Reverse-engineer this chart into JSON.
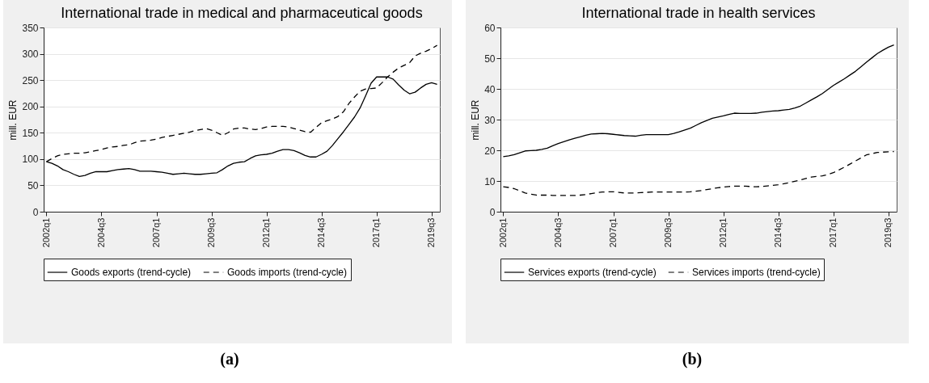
{
  "chart_data": [
    {
      "type": "line",
      "title": "International trade in medical and pharmaceutical goods",
      "ylabel": "mill. EUR",
      "annotations": [
        "(a)"
      ],
      "ylim": [
        0,
        350
      ],
      "yticks": [
        0,
        50,
        100,
        150,
        200,
        250,
        300,
        350
      ],
      "categories": [
        "2002q1",
        null,
        null,
        null,
        null,
        null,
        null,
        null,
        null,
        null,
        "2004q3",
        null,
        null,
        null,
        null,
        null,
        null,
        null,
        null,
        null,
        "2007q1",
        null,
        null,
        null,
        null,
        null,
        null,
        null,
        null,
        null,
        "2009q3",
        null,
        null,
        null,
        null,
        null,
        null,
        null,
        null,
        null,
        "2012q1",
        null,
        null,
        null,
        null,
        null,
        null,
        null,
        null,
        null,
        "2014q3",
        null,
        null,
        null,
        null,
        null,
        null,
        null,
        null,
        null,
        "2017q1",
        null,
        null,
        null,
        null,
        null,
        null,
        null,
        null,
        null,
        "2019q3",
        null
      ],
      "grid": "y",
      "legend": "bottom",
      "series": [
        {
          "name": "Goods exports (trend-cycle)",
          "color": "#000000",
          "line_style": "solid",
          "values": [
            95,
            92,
            87,
            80,
            76,
            71,
            67,
            69,
            73,
            76,
            76,
            76,
            78,
            80,
            81,
            82,
            80,
            77,
            77,
            77,
            76,
            75,
            73,
            71,
            72,
            73,
            72,
            71,
            71,
            72,
            73,
            74,
            80,
            87,
            92,
            94,
            95,
            101,
            106,
            108,
            109,
            111,
            115,
            118,
            118,
            116,
            112,
            107,
            104,
            104,
            109,
            115,
            126,
            139,
            152,
            166,
            180,
            197,
            220,
            244,
            256,
            256,
            256,
            252,
            241,
            231,
            224,
            227,
            235,
            242,
            245,
            242
          ]
        },
        {
          "name": "Goods imports (trend-cycle)",
          "color": "#000000",
          "line_style": "dashed",
          "values": [
            95,
            101,
            106,
            109,
            110,
            111,
            111,
            112,
            114,
            116,
            118,
            121,
            123,
            124,
            126,
            127,
            131,
            134,
            135,
            136,
            138,
            141,
            143,
            145,
            147,
            149,
            151,
            154,
            156,
            158,
            155,
            150,
            145,
            150,
            157,
            159,
            159,
            157,
            156,
            158,
            161,
            162,
            162,
            162,
            161,
            158,
            155,
            152,
            151,
            160,
            169,
            173,
            176,
            181,
            190,
            206,
            218,
            229,
            233,
            234,
            235,
            245,
            256,
            265,
            273,
            278,
            283,
            296,
            301,
            305,
            310,
            316
          ]
        }
      ]
    },
    {
      "type": "line",
      "title": "International trade in health services",
      "ylabel": "mill. EUR",
      "annotations": [
        "(b)"
      ],
      "ylim": [
        0,
        60
      ],
      "yticks": [
        0,
        10,
        20,
        30,
        40,
        50,
        60
      ],
      "categories": [
        "2002q1",
        null,
        null,
        null,
        null,
        null,
        null,
        null,
        null,
        null,
        "2004q3",
        null,
        null,
        null,
        null,
        null,
        null,
        null,
        null,
        null,
        "2007q1",
        null,
        null,
        null,
        null,
        null,
        null,
        null,
        null,
        null,
        "2009q3",
        null,
        null,
        null,
        null,
        null,
        null,
        null,
        null,
        null,
        "2012q1",
        null,
        null,
        null,
        null,
        null,
        null,
        null,
        null,
        null,
        "2014q3",
        null,
        null,
        null,
        null,
        null,
        null,
        null,
        null,
        null,
        "2017q1",
        null,
        null,
        null,
        null,
        null,
        null,
        null,
        null,
        null,
        "2019q3",
        null
      ],
      "grid": "y",
      "legend": "bottom",
      "series": [
        {
          "name": "Services exports (trend-cycle)",
          "color": "#000000",
          "line_style": "solid",
          "values": [
            17.9,
            18.2,
            18.6,
            19.2,
            19.8,
            19.9,
            20.0,
            20.3,
            20.7,
            21.5,
            22.2,
            22.8,
            23.4,
            23.9,
            24.4,
            24.9,
            25.3,
            25.4,
            25.5,
            25.4,
            25.2,
            25.0,
            24.8,
            24.7,
            24.6,
            24.9,
            25.1,
            25.1,
            25.1,
            25.1,
            25.1,
            25.5,
            26.0,
            26.6,
            27.2,
            28.1,
            29.0,
            29.7,
            30.4,
            30.8,
            31.2,
            31.7,
            32.1,
            32.0,
            32.0,
            32.0,
            32.1,
            32.4,
            32.6,
            32.8,
            32.9,
            33.1,
            33.3,
            33.8,
            34.4,
            35.4,
            36.4,
            37.4,
            38.5,
            39.8,
            41.1,
            42.2,
            43.3,
            44.5,
            45.7,
            47.2,
            48.7,
            50.1,
            51.5,
            52.6,
            53.6,
            54.3
          ]
        },
        {
          "name": "Services imports (trend-cycle)",
          "color": "#000000",
          "line_style": "dashed",
          "values": [
            8.1,
            7.9,
            7.5,
            6.8,
            6.1,
            5.7,
            5.4,
            5.4,
            5.4,
            5.3,
            5.3,
            5.3,
            5.3,
            5.3,
            5.4,
            5.6,
            5.9,
            6.2,
            6.4,
            6.5,
            6.5,
            6.3,
            6.1,
            6.1,
            6.1,
            6.2,
            6.3,
            6.4,
            6.4,
            6.4,
            6.4,
            6.4,
            6.4,
            6.4,
            6.5,
            6.7,
            6.9,
            7.2,
            7.5,
            7.8,
            8.0,
            8.2,
            8.3,
            8.3,
            8.3,
            8.2,
            8.1,
            8.2,
            8.4,
            8.6,
            8.8,
            9.1,
            9.5,
            9.9,
            10.3,
            10.8,
            11.3,
            11.5,
            11.7,
            12.1,
            12.7,
            13.6,
            14.5,
            15.5,
            16.5,
            17.5,
            18.5,
            18.9,
            19.3,
            19.4,
            19.5,
            19.6
          ]
        }
      ]
    }
  ]
}
